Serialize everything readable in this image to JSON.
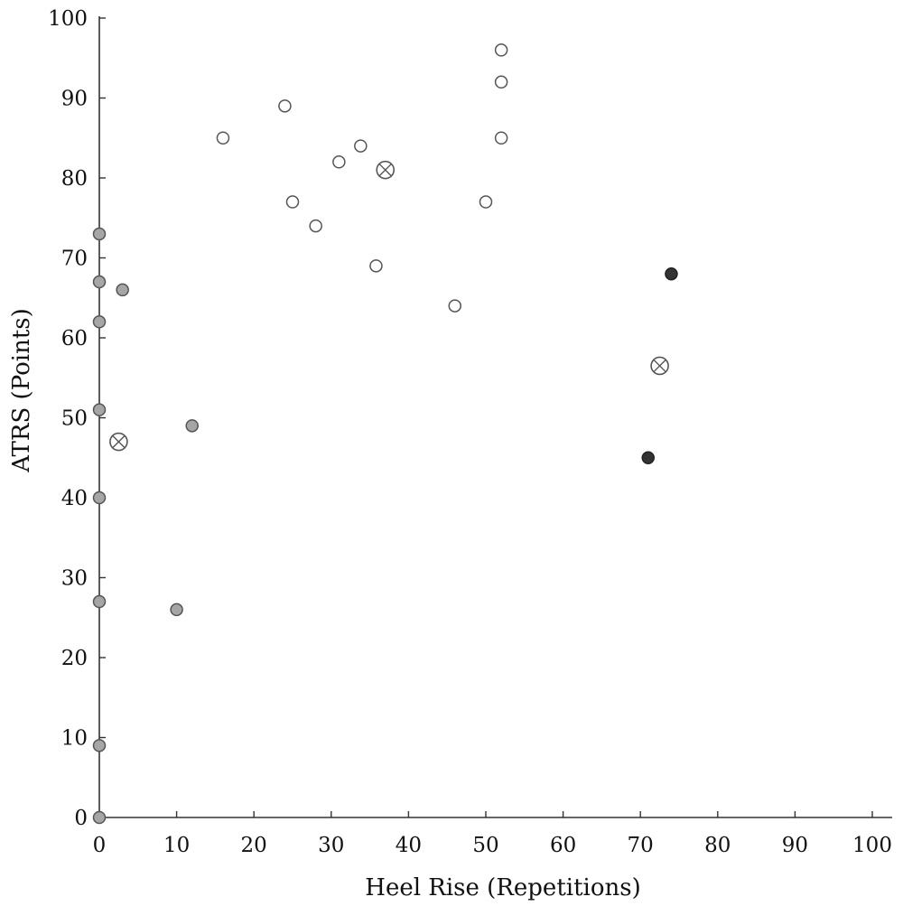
{
  "chart_data": {
    "type": "scatter",
    "xlabel": "Heel Rise (Repetitions)",
    "ylabel": "ATRS (Points)",
    "xlim": [
      0,
      100
    ],
    "ylim": [
      0,
      100
    ],
    "xticks": [
      0,
      10,
      20,
      30,
      40,
      50,
      60,
      70,
      80,
      90,
      100
    ],
    "yticks": [
      0,
      10,
      20,
      30,
      40,
      50,
      60,
      70,
      80,
      90,
      100
    ],
    "grid": false,
    "series": [
      {
        "marker": "open-circle",
        "fill": "#ffffff",
        "stroke": "#555555",
        "x": [
          16,
          24,
          25,
          28,
          31,
          33.8,
          35.8,
          46,
          50,
          52,
          52,
          52
        ],
        "y": [
          85,
          89,
          77,
          74,
          82,
          84,
          69,
          64,
          77,
          96,
          92,
          85
        ]
      },
      {
        "marker": "crossed-circle",
        "fill": "#ffffff",
        "stroke": "#555555",
        "x": [
          2.5,
          37,
          72.5
        ],
        "y": [
          47,
          81,
          56.5
        ]
      },
      {
        "marker": "filled-circle",
        "fill": "#a6a6a6",
        "stroke": "#555555",
        "x": [
          0,
          0,
          0,
          0,
          0,
          0,
          0,
          0,
          3,
          10,
          12
        ],
        "y": [
          73,
          67,
          62,
          51,
          40,
          27,
          9,
          0,
          66,
          26,
          49
        ]
      },
      {
        "marker": "filled-circle",
        "fill": "#333333",
        "stroke": "#222222",
        "x": [
          71,
          74
        ],
        "y": [
          45,
          68
        ]
      }
    ]
  }
}
